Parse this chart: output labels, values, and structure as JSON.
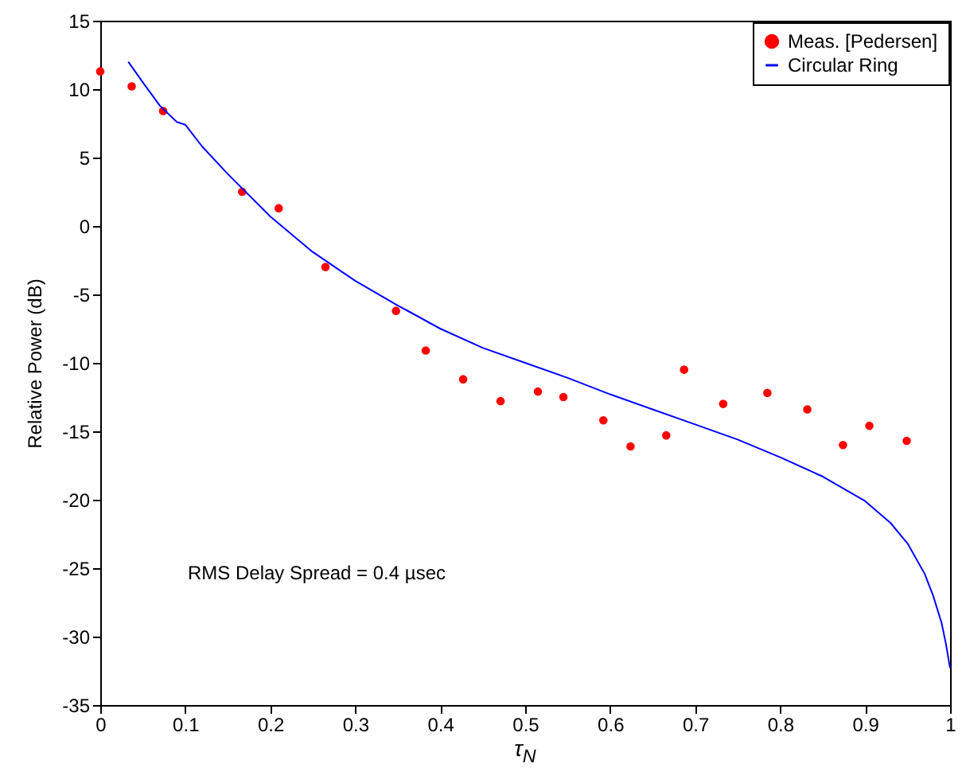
{
  "chart_data": {
    "type": "line",
    "xlabel": "τ$_{N}$",
    "ylabel": "Relative Power (dB)",
    "xlim": [
      0,
      1
    ],
    "xticks": [
      0,
      0.1,
      0.2,
      0.3,
      0.4,
      0.5,
      0.6,
      0.7,
      0.8,
      0.9,
      1
    ],
    "ylim": [
      -35,
      15
    ],
    "yticks": [
      -35,
      -30,
      -25,
      -20,
      -15,
      -10,
      -5,
      0,
      5,
      10,
      15
    ],
    "grid": false,
    "legend": "top right",
    "annotations": [
      "RMS Delay Spread = 0.4 µsec"
    ],
    "series": [
      {
        "name": "Meas. [Pedersen]",
        "type": "scatter",
        "marker": "circle",
        "color": "#ff0000",
        "x": [
          0,
          0.037,
          0.074,
          0.167,
          0.21,
          0.265,
          0.348,
          0.383,
          0.427,
          0.471,
          0.515,
          0.545,
          0.592,
          0.624,
          0.666,
          0.687,
          0.733,
          0.785,
          0.832,
          0.874,
          0.905,
          0.949
        ],
        "values": [
          11.3,
          10.2,
          8.4,
          2.5,
          1.3,
          -3.0,
          -6.2,
          -9.1,
          -11.2,
          -12.8,
          -12.1,
          -12.5,
          -14.2,
          -16.1,
          -15.3,
          -10.5,
          -13.0,
          -12.2,
          -13.4,
          -16.0,
          -14.6,
          -15.7
        ]
      },
      {
        "name": "Circular Ring",
        "type": "line",
        "color": "#0000ff",
        "x": [
          0.033,
          0.05,
          0.07,
          0.09,
          0.1,
          0.12,
          0.15,
          0.2,
          0.25,
          0.3,
          0.35,
          0.4,
          0.45,
          0.5,
          0.55,
          0.6,
          0.65,
          0.7,
          0.75,
          0.8,
          0.85,
          0.9,
          0.93,
          0.95,
          0.97,
          0.98,
          0.99,
          0.995,
          1.0
        ],
        "values": [
          12,
          10.5,
          8.8,
          7.6,
          7.4,
          5.8,
          3.8,
          0.7,
          -1.9,
          -4.0,
          -5.8,
          -7.5,
          -8.9,
          -10.0,
          -11.1,
          -12.3,
          -13.4,
          -14.5,
          -15.6,
          -16.9,
          -18.3,
          -20.1,
          -21.7,
          -23.2,
          -25.4,
          -27.0,
          -29.0,
          -30.5,
          -32.3
        ]
      }
    ]
  }
}
